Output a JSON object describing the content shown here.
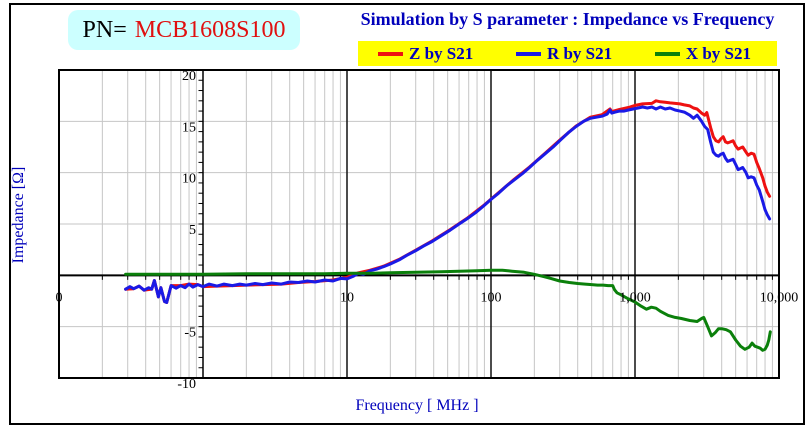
{
  "header": {
    "pn_label": "PN=",
    "pn_value": "MCB1608S100",
    "title": "Simulation by S parameter : Impedance vs Frequency"
  },
  "legend": {
    "bg_color": "#ffff00",
    "text_color": "#0000bb",
    "items": [
      {
        "label": "Z by S21",
        "color": "#ee1111"
      },
      {
        "label": "R by S21",
        "color": "#1a1ae6"
      },
      {
        "label": "X by S21",
        "color": "#0b800b"
      }
    ]
  },
  "colors": {
    "pn_box_bg": "#ccffff",
    "pn_value": "#e01010",
    "title_blue": "#0000bb",
    "grid_minor": "#c6c6c6",
    "grid_major": "#111111",
    "axis": "#000000"
  },
  "chart_data": {
    "type": "line",
    "title": "Simulation by S parameter : Impedance vs Frequency",
    "xlabel": "Frequency [ MHz ]",
    "ylabel": "Impedance [Ω]",
    "x_scale": "log",
    "xlim": [
      0.1,
      10000
    ],
    "ylim": [
      -10,
      20
    ],
    "grid": {
      "vertical": "log minor + dark decades",
      "horizontal_step": 5,
      "y_axis_cross_at_mhz": 1
    },
    "legend_position": "top",
    "x_ticks": [
      {
        "value": 0.1,
        "label": "0"
      },
      {
        "value": 10,
        "label": "10"
      },
      {
        "value": 100,
        "label": "100"
      },
      {
        "value": 1000,
        "label": "1,000"
      },
      {
        "value": 10000,
        "label": "10,000"
      }
    ],
    "y_ticks": [
      {
        "value": 20,
        "label": "20"
      },
      {
        "value": 15,
        "label": "15"
      },
      {
        "value": 10,
        "label": "10"
      },
      {
        "value": 5,
        "label": "5"
      },
      {
        "value": -5,
        "label": "-5"
      },
      {
        "value": -10,
        "label": "-10"
      }
    ],
    "series": [
      {
        "name": "Z by S21",
        "color": "#ee1111",
        "points": [
          [
            0.29,
            -1.35
          ],
          [
            0.33,
            -1.3
          ],
          [
            0.36,
            -1.05
          ],
          [
            0.39,
            -1.45
          ],
          [
            0.44,
            -1.35
          ],
          [
            0.46,
            -0.5
          ],
          [
            0.49,
            -2.1
          ],
          [
            0.51,
            -1.2
          ],
          [
            0.54,
            -2.55
          ],
          [
            0.56,
            -2.65
          ],
          [
            0.6,
            -1.0
          ],
          [
            0.7,
            -1.0
          ],
          [
            0.8,
            -0.85
          ],
          [
            0.92,
            -0.9
          ],
          [
            1.0,
            -1.1
          ],
          [
            1.25,
            -1.05
          ],
          [
            1.6,
            -1.0
          ],
          [
            2.0,
            -0.95
          ],
          [
            2.6,
            -0.9
          ],
          [
            3.5,
            -0.85
          ],
          [
            4.6,
            -0.7
          ],
          [
            6.0,
            -0.6
          ],
          [
            8.0,
            -0.45
          ],
          [
            10,
            -0.2
          ],
          [
            12,
            0.25
          ],
          [
            14.5,
            0.5
          ],
          [
            18,
            0.9
          ],
          [
            23,
            1.55
          ],
          [
            30,
            2.45
          ],
          [
            39,
            3.35
          ],
          [
            52,
            4.45
          ],
          [
            68,
            5.55
          ],
          [
            88,
            6.75
          ],
          [
            113,
            8.05
          ],
          [
            145,
            9.35
          ],
          [
            185,
            10.55
          ],
          [
            240,
            11.95
          ],
          [
            305,
            13.25
          ],
          [
            390,
            14.55
          ],
          [
            490,
            15.4
          ],
          [
            590,
            15.65
          ],
          [
            670,
            16.2
          ],
          [
            690,
            15.95
          ],
          [
            780,
            16.15
          ],
          [
            900,
            16.35
          ],
          [
            1000,
            16.55
          ],
          [
            1130,
            16.7
          ],
          [
            1310,
            16.75
          ],
          [
            1400,
            17.0
          ],
          [
            1500,
            16.9
          ],
          [
            1620,
            16.85
          ],
          [
            1750,
            16.8
          ],
          [
            1900,
            16.75
          ],
          [
            2050,
            16.7
          ],
          [
            2200,
            16.6
          ],
          [
            2400,
            16.5
          ],
          [
            2550,
            16.3
          ],
          [
            2700,
            16.2
          ],
          [
            2900,
            15.8
          ],
          [
            3050,
            15.6
          ],
          [
            3150,
            15.85
          ],
          [
            3350,
            14.4
          ],
          [
            3500,
            13.5
          ],
          [
            3650,
            13.1
          ],
          [
            3800,
            13.0
          ],
          [
            3950,
            13.3
          ],
          [
            4100,
            13.5
          ],
          [
            4250,
            13.0
          ],
          [
            4400,
            12.9
          ],
          [
            4600,
            13.0
          ],
          [
            4800,
            13.1
          ],
          [
            5000,
            12.6
          ],
          [
            5200,
            12.3
          ],
          [
            5400,
            12.4
          ],
          [
            5600,
            12.5
          ],
          [
            5900,
            12.0
          ],
          [
            6100,
            11.7
          ],
          [
            6400,
            11.9
          ],
          [
            6700,
            11.8
          ],
          [
            7000,
            11.0
          ],
          [
            7300,
            10.4
          ],
          [
            7700,
            9.5
          ],
          [
            8000,
            8.7
          ],
          [
            8300,
            8.1
          ],
          [
            8600,
            7.7
          ]
        ]
      },
      {
        "name": "R by S21",
        "color": "#1a1ae6",
        "points": [
          [
            0.29,
            -1.35
          ],
          [
            0.31,
            -1.1
          ],
          [
            0.33,
            -1.3
          ],
          [
            0.36,
            -1.05
          ],
          [
            0.39,
            -1.45
          ],
          [
            0.42,
            -1.2
          ],
          [
            0.44,
            -1.35
          ],
          [
            0.46,
            -0.5
          ],
          [
            0.49,
            -2.1
          ],
          [
            0.51,
            -1.2
          ],
          [
            0.54,
            -2.55
          ],
          [
            0.56,
            -2.65
          ],
          [
            0.6,
            -1.0
          ],
          [
            0.65,
            -1.25
          ],
          [
            0.7,
            -1.0
          ],
          [
            0.75,
            -1.2
          ],
          [
            0.8,
            -0.85
          ],
          [
            0.85,
            -1.15
          ],
          [
            0.92,
            -0.9
          ],
          [
            1.0,
            -1.1
          ],
          [
            1.1,
            -0.85
          ],
          [
            1.25,
            -1.05
          ],
          [
            1.4,
            -0.85
          ],
          [
            1.6,
            -1.0
          ],
          [
            1.8,
            -0.85
          ],
          [
            2.0,
            -0.95
          ],
          [
            2.3,
            -0.8
          ],
          [
            2.6,
            -0.9
          ],
          [
            3.0,
            -0.75
          ],
          [
            3.5,
            -0.85
          ],
          [
            4.0,
            -0.65
          ],
          [
            4.6,
            -0.7
          ],
          [
            5.3,
            -0.55
          ],
          [
            6.0,
            -0.65
          ],
          [
            7.0,
            -0.45
          ],
          [
            8.0,
            -0.55
          ],
          [
            9.0,
            -0.3
          ],
          [
            10,
            -0.35
          ],
          [
            11,
            -0.1
          ],
          [
            12,
            0.2
          ],
          [
            13,
            0.1
          ],
          [
            14.5,
            0.45
          ],
          [
            16,
            0.6
          ],
          [
            18,
            0.85
          ],
          [
            20,
            1.1
          ],
          [
            23,
            1.5
          ],
          [
            26,
            1.95
          ],
          [
            30,
            2.4
          ],
          [
            34,
            2.85
          ],
          [
            39,
            3.3
          ],
          [
            45,
            3.85
          ],
          [
            52,
            4.4
          ],
          [
            60,
            5.0
          ],
          [
            68,
            5.5
          ],
          [
            78,
            6.1
          ],
          [
            88,
            6.7
          ],
          [
            100,
            7.4
          ],
          [
            113,
            8.0
          ],
          [
            128,
            8.7
          ],
          [
            145,
            9.3
          ],
          [
            165,
            9.9
          ],
          [
            185,
            10.5
          ],
          [
            210,
            11.2
          ],
          [
            240,
            11.9
          ],
          [
            270,
            12.5
          ],
          [
            305,
            13.2
          ],
          [
            345,
            13.9
          ],
          [
            390,
            14.5
          ],
          [
            440,
            15.0
          ],
          [
            490,
            15.3
          ],
          [
            540,
            15.4
          ],
          [
            590,
            15.5
          ],
          [
            640,
            15.7
          ],
          [
            670,
            16.1
          ],
          [
            690,
            15.8
          ],
          [
            730,
            15.9
          ],
          [
            780,
            16.0
          ],
          [
            840,
            16.0
          ],
          [
            900,
            16.1
          ],
          [
            970,
            16.2
          ],
          [
            1050,
            16.3
          ],
          [
            1130,
            16.4
          ],
          [
            1220,
            16.3
          ],
          [
            1310,
            16.4
          ],
          [
            1400,
            16.2
          ],
          [
            1500,
            16.4
          ],
          [
            1620,
            16.2
          ],
          [
            1750,
            16.3
          ],
          [
            1900,
            16.1
          ],
          [
            2050,
            16.0
          ],
          [
            2200,
            15.9
          ],
          [
            2400,
            15.6
          ],
          [
            2550,
            15.3
          ],
          [
            2700,
            15.6
          ],
          [
            2900,
            15.0
          ],
          [
            3050,
            14.5
          ],
          [
            3200,
            14.2
          ],
          [
            3350,
            13.0
          ],
          [
            3500,
            12.0
          ],
          [
            3650,
            11.7
          ],
          [
            3800,
            11.6
          ],
          [
            3950,
            11.8
          ],
          [
            4100,
            11.9
          ],
          [
            4250,
            11.4
          ],
          [
            4400,
            11.1
          ],
          [
            4600,
            11.2
          ],
          [
            4800,
            11.3
          ],
          [
            5000,
            10.8
          ],
          [
            5200,
            10.3
          ],
          [
            5400,
            10.4
          ],
          [
            5600,
            10.5
          ],
          [
            5900,
            10.0
          ],
          [
            6100,
            9.5
          ],
          [
            6400,
            9.6
          ],
          [
            6700,
            9.5
          ],
          [
            7000,
            8.8
          ],
          [
            7300,
            8.3
          ],
          [
            7700,
            7.2
          ],
          [
            8000,
            6.4
          ],
          [
            8300,
            5.9
          ],
          [
            8600,
            5.5
          ]
        ]
      },
      {
        "name": "X by S21",
        "color": "#0b800b",
        "points": [
          [
            0.29,
            0.1
          ],
          [
            0.5,
            0.1
          ],
          [
            1.0,
            0.1
          ],
          [
            2.0,
            0.15
          ],
          [
            4.0,
            0.15
          ],
          [
            7.0,
            0.15
          ],
          [
            10,
            0.2
          ],
          [
            15,
            0.2
          ],
          [
            20,
            0.25
          ],
          [
            30,
            0.3
          ],
          [
            45,
            0.35
          ],
          [
            60,
            0.4
          ],
          [
            80,
            0.45
          ],
          [
            100,
            0.5
          ],
          [
            120,
            0.5
          ],
          [
            140,
            0.4
          ],
          [
            170,
            0.3
          ],
          [
            200,
            0.1
          ],
          [
            230,
            -0.1
          ],
          [
            260,
            -0.3
          ],
          [
            300,
            -0.55
          ],
          [
            350,
            -0.7
          ],
          [
            400,
            -0.8
          ],
          [
            450,
            -0.85
          ],
          [
            500,
            -0.9
          ],
          [
            550,
            -0.95
          ],
          [
            600,
            -0.95
          ],
          [
            650,
            -1.0
          ],
          [
            700,
            -1.0
          ],
          [
            720,
            -1.4
          ],
          [
            750,
            -1.7
          ],
          [
            800,
            -1.9
          ],
          [
            850,
            -2.1
          ],
          [
            900,
            -2.3
          ],
          [
            1000,
            -2.6
          ],
          [
            1100,
            -3.0
          ],
          [
            1200,
            -3.3
          ],
          [
            1300,
            -3.1
          ],
          [
            1400,
            -3.2
          ],
          [
            1500,
            -3.5
          ],
          [
            1700,
            -3.9
          ],
          [
            1900,
            -4.1
          ],
          [
            2100,
            -4.2
          ],
          [
            2400,
            -4.4
          ],
          [
            2700,
            -4.5
          ],
          [
            2900,
            -4.2
          ],
          [
            3000,
            -4.1
          ],
          [
            3200,
            -5.0
          ],
          [
            3400,
            -5.9
          ],
          [
            3600,
            -5.6
          ],
          [
            3800,
            -5.2
          ],
          [
            4000,
            -5.2
          ],
          [
            4300,
            -5.3
          ],
          [
            4600,
            -5.5
          ],
          [
            5000,
            -6.3
          ],
          [
            5400,
            -6.9
          ],
          [
            5800,
            -7.2
          ],
          [
            6200,
            -7.0
          ],
          [
            6500,
            -6.6
          ],
          [
            6800,
            -6.9
          ],
          [
            7100,
            -7.0
          ],
          [
            7400,
            -7.1
          ],
          [
            7700,
            -7.3
          ],
          [
            8000,
            -7.2
          ],
          [
            8300,
            -6.8
          ],
          [
            8500,
            -6.3
          ],
          [
            8700,
            -5.5
          ]
        ]
      }
    ]
  }
}
